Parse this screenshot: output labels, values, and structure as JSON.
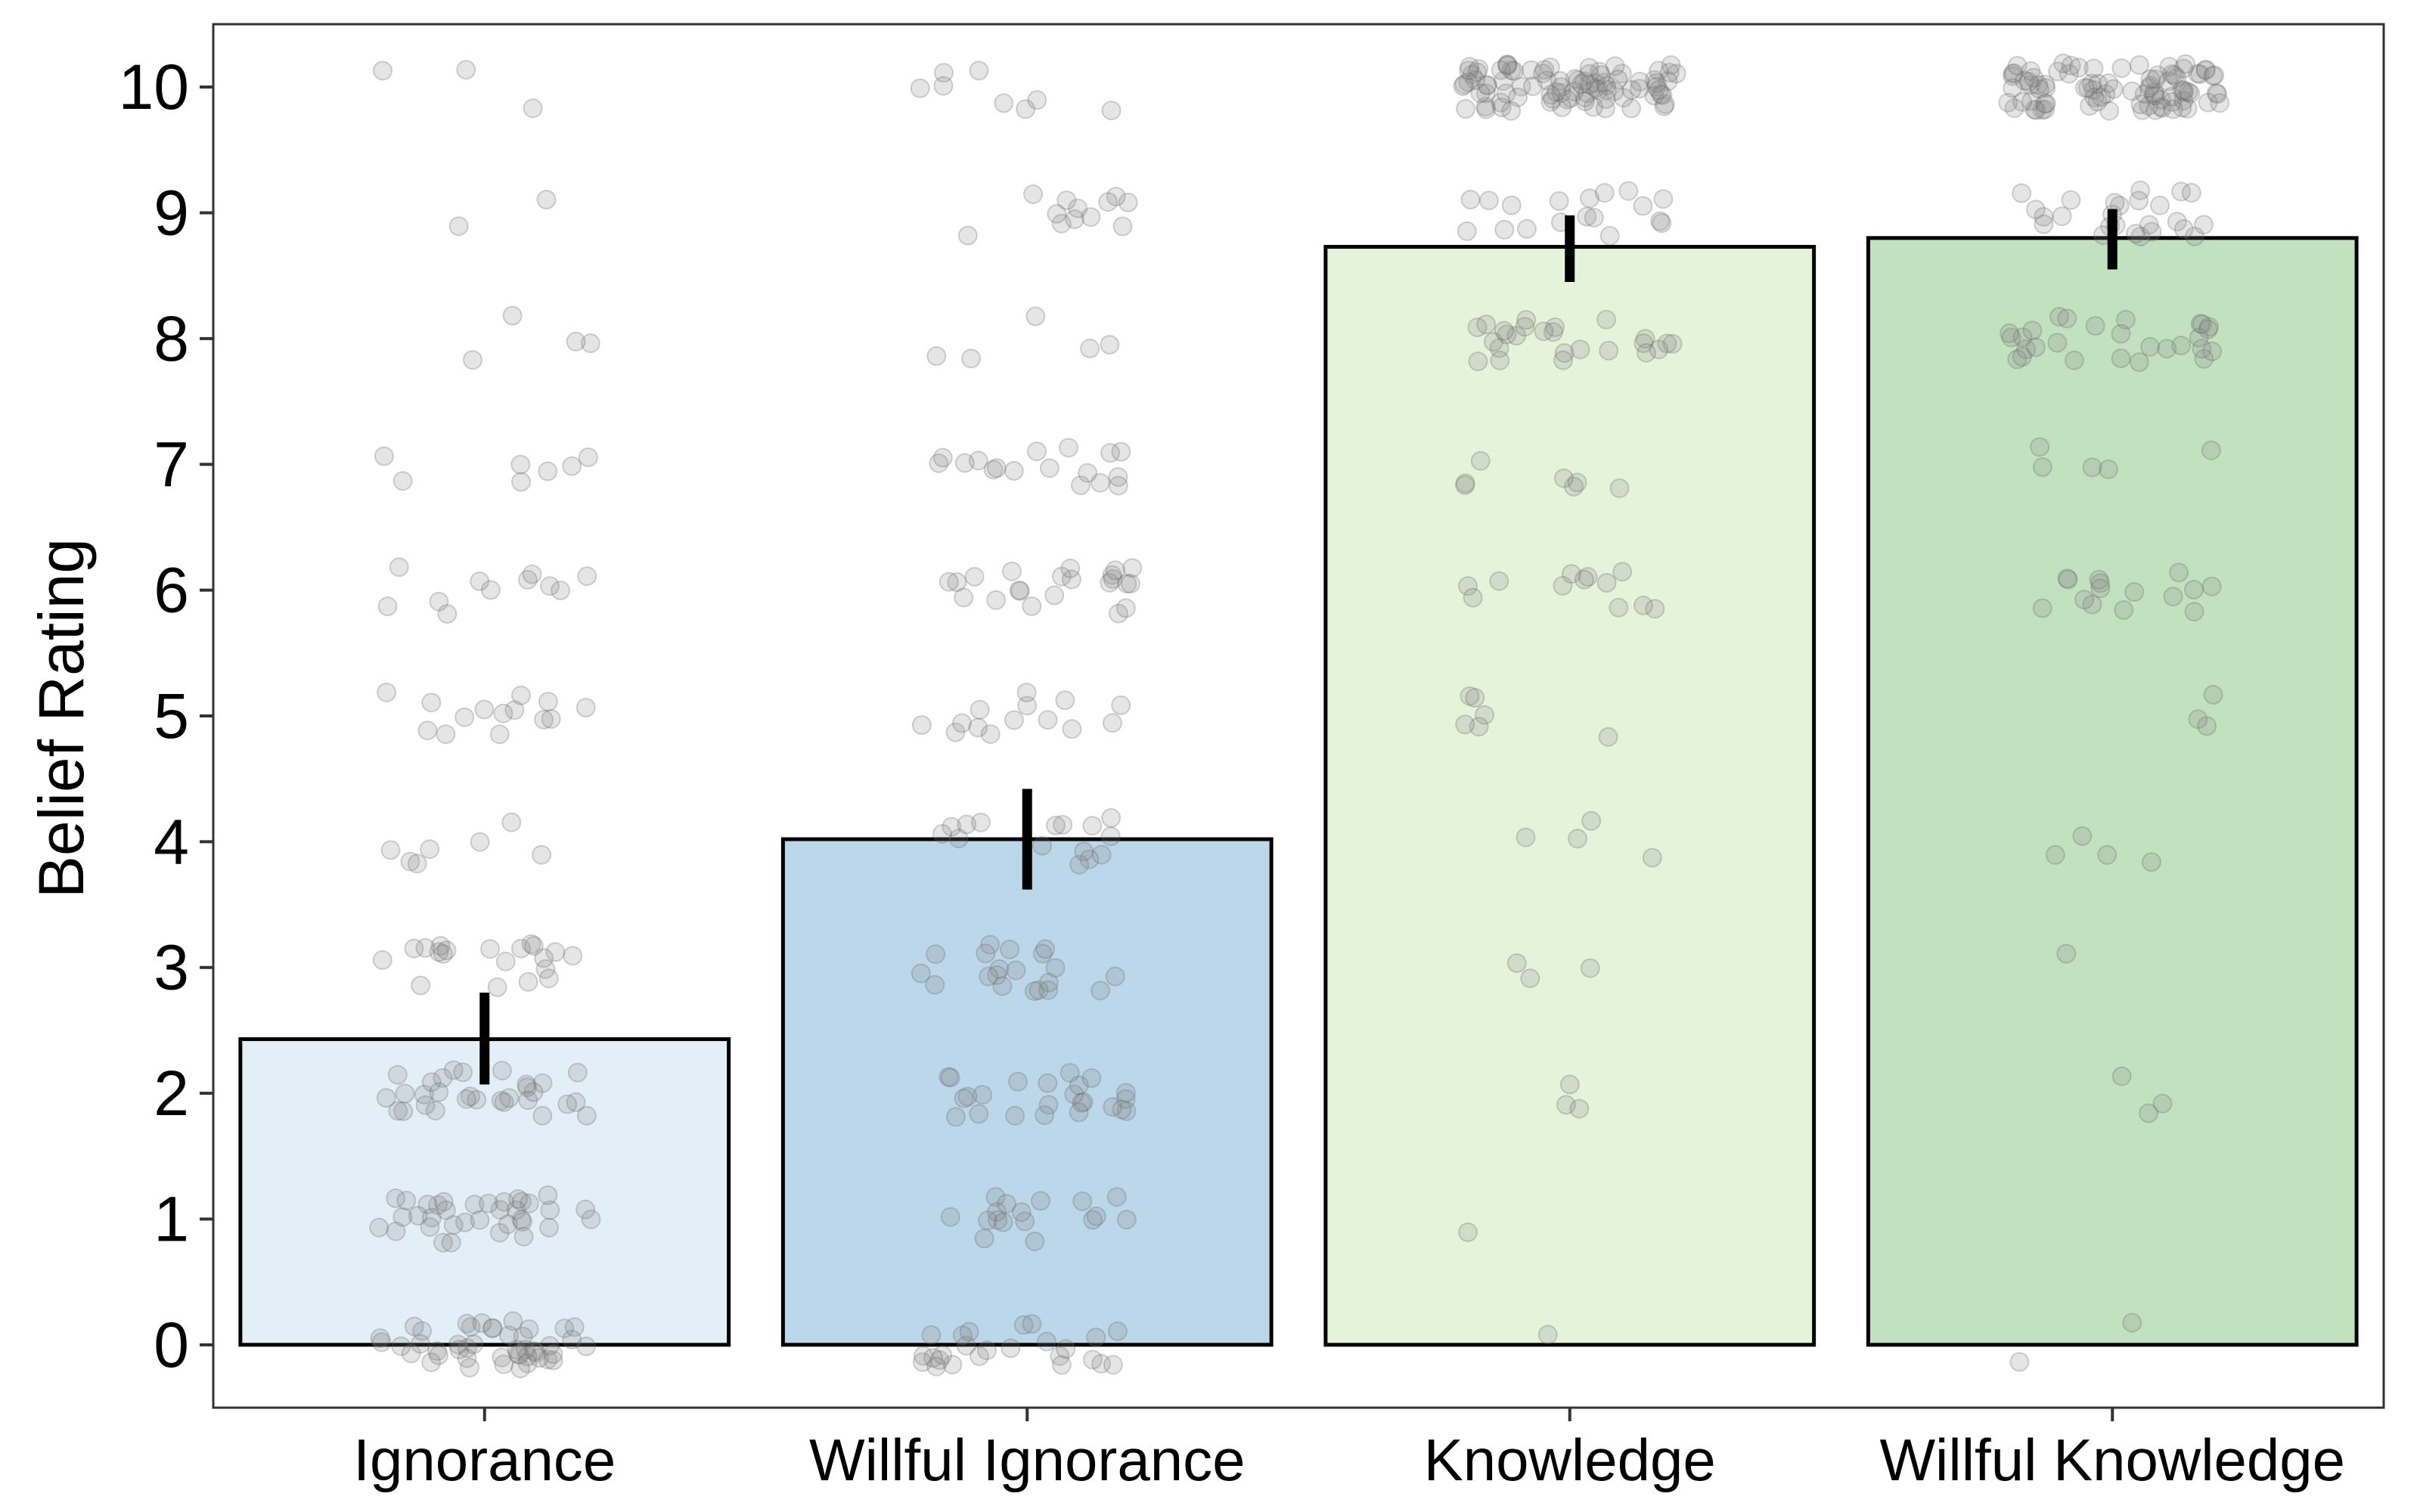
{
  "chart_data": {
    "type": "bar",
    "ylabel": "Belief Rating",
    "xlabel": "",
    "ylim": [
      -0.5,
      10.5
    ],
    "yticks": [
      0,
      1,
      2,
      3,
      4,
      5,
      6,
      7,
      8,
      9,
      10
    ],
    "grid": false,
    "categories": [
      "Ignorance",
      "Willful Ignorance",
      "Knowledge",
      "Willful Knowledge"
    ],
    "values": [
      2.43,
      4.02,
      8.73,
      8.8
    ],
    "error_bars": [
      {
        "low": 2.07,
        "high": 2.8
      },
      {
        "low": 3.62,
        "high": 4.42
      },
      {
        "low": 8.45,
        "high": 8.98
      },
      {
        "low": 8.55,
        "high": 9.03
      }
    ],
    "colors": [
      "#e3eff7",
      "#bcd7ea",
      "#e6f3db",
      "#c2e1be"
    ],
    "point_color": "#888888",
    "points": [
      {
        "category": "Ignorance",
        "counts": [
          {
            "y": 0,
            "n": 45
          },
          {
            "y": 1,
            "n": 35
          },
          {
            "y": 2,
            "n": 30
          },
          {
            "y": 3,
            "n": 20
          },
          {
            "y": 4,
            "n": 7
          },
          {
            "y": 5,
            "n": 14
          },
          {
            "y": 6,
            "n": 11
          },
          {
            "y": 7,
            "n": 7
          },
          {
            "y": 8,
            "n": 4
          },
          {
            "y": 9,
            "n": 2
          },
          {
            "y": 10,
            "n": 3
          }
        ]
      },
      {
        "category": "Willful Ignorance",
        "counts": [
          {
            "y": 0,
            "n": 25
          },
          {
            "y": 1,
            "n": 17
          },
          {
            "y": 2,
            "n": 24
          },
          {
            "y": 3,
            "n": 20
          },
          {
            "y": 4,
            "n": 15
          },
          {
            "y": 5,
            "n": 14
          },
          {
            "y": 6,
            "n": 22
          },
          {
            "y": 7,
            "n": 17
          },
          {
            "y": 8,
            "n": 5
          },
          {
            "y": 9,
            "n": 12
          },
          {
            "y": 10,
            "n": 8
          }
        ]
      },
      {
        "category": "Knowledge",
        "counts": [
          {
            "y": 0,
            "n": 1
          },
          {
            "y": 1,
            "n": 1
          },
          {
            "y": 2,
            "n": 3
          },
          {
            "y": 3,
            "n": 3
          },
          {
            "y": 4,
            "n": 4
          },
          {
            "y": 5,
            "n": 6
          },
          {
            "y": 6,
            "n": 12
          },
          {
            "y": 7,
            "n": 7
          },
          {
            "y": 8,
            "n": 25
          },
          {
            "y": 9,
            "n": 18
          },
          {
            "y": 10,
            "n": 90
          }
        ]
      },
      {
        "category": "Willful Knowledge",
        "counts": [
          {
            "y": 0,
            "n": 2
          },
          {
            "y": 2,
            "n": 3
          },
          {
            "y": 3,
            "n": 1
          },
          {
            "y": 4,
            "n": 4
          },
          {
            "y": 5,
            "n": 3
          },
          {
            "y": 6,
            "n": 15
          },
          {
            "y": 7,
            "n": 5
          },
          {
            "y": 8,
            "n": 28
          },
          {
            "y": 9,
            "n": 25
          },
          {
            "y": 10,
            "n": 90
          }
        ]
      }
    ]
  }
}
